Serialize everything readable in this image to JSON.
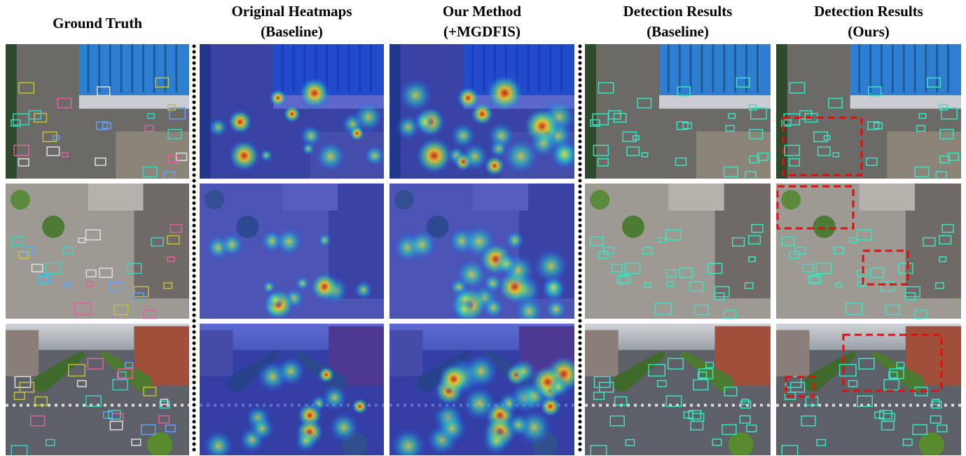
{
  "columns": [
    {
      "lines": [
        "Ground Truth"
      ]
    },
    {
      "lines": [
        "Original Heatmaps",
        "(Baseline)"
      ]
    },
    {
      "lines": [
        "Our Method",
        "(+MGDFIS)"
      ]
    },
    {
      "lines": [
        "Detection Results",
        "(Baseline)"
      ]
    },
    {
      "lines": [
        "Detection Results",
        "(Ours)"
      ]
    }
  ]
}
